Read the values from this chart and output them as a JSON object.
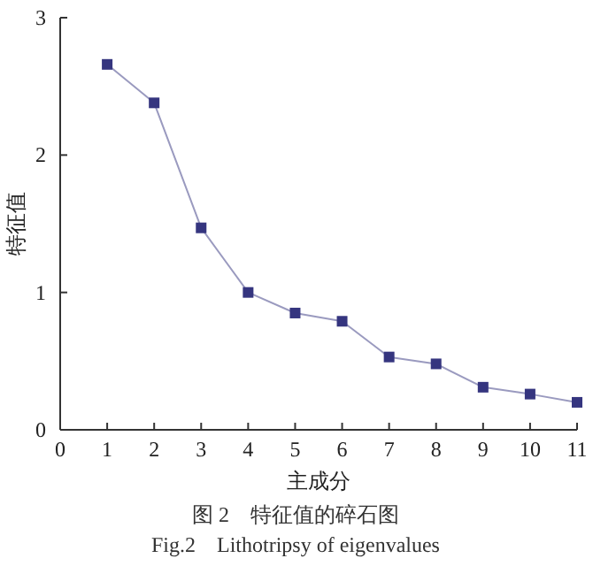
{
  "chart_data": {
    "type": "line",
    "xlabel": "主成分",
    "ylabel": "特征值",
    "x": [
      1,
      2,
      3,
      4,
      5,
      6,
      7,
      8,
      9,
      10,
      11
    ],
    "series": [
      {
        "color": "#35357f",
        "values": [
          2.66,
          2.38,
          1.47,
          1.0,
          0.85,
          0.79,
          0.53,
          0.48,
          0.31,
          0.26,
          0.2
        ]
      }
    ],
    "xlim": [
      0,
      11
    ],
    "xticks": [
      0,
      1,
      2,
      3,
      4,
      5,
      6,
      7,
      8,
      9,
      10,
      11
    ],
    "ylim": [
      0,
      3
    ],
    "yticks": [
      0,
      1,
      2,
      3
    ],
    "marker": "square",
    "line_style": "solid",
    "annotations": [
      "图 2　特征值的碎石图",
      "Fig.2　Lithotripsy of eigenvalues"
    ]
  }
}
